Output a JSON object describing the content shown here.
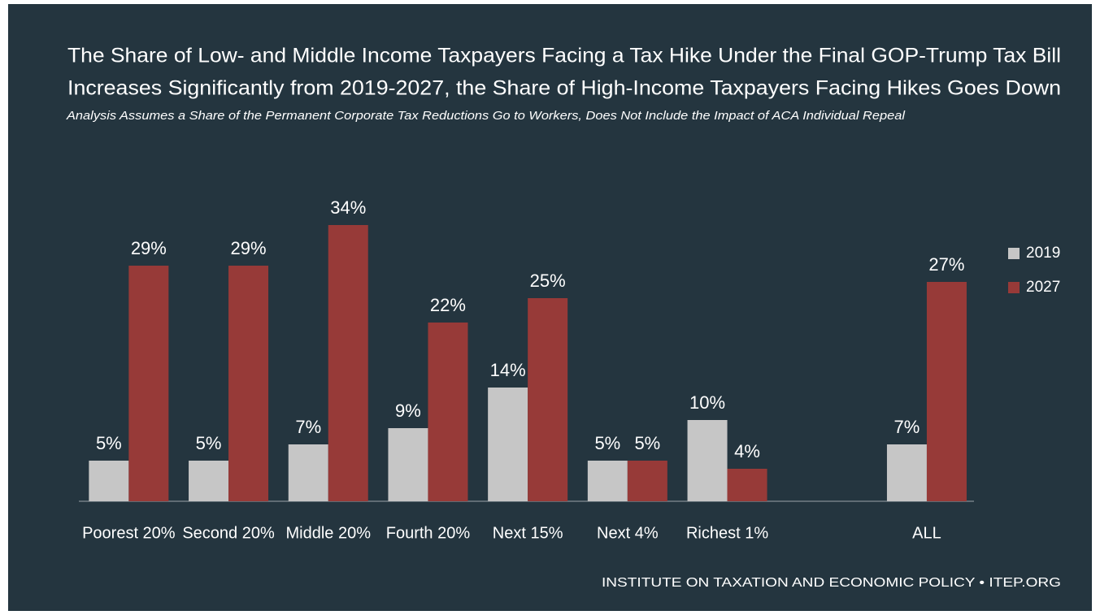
{
  "chart_data": {
    "type": "bar",
    "title": [
      "The Share of Low- and Middle Income Taxpayers Facing a Tax Hike Under the Final GOP-Trump Tax Bill",
      "Increases Significantly from 2019-2027, the Share of High-Income Taxpayers Facing Hikes Goes Down"
    ],
    "subtitle": "Analysis Assumes a Share of the Permanent Corporate Tax Reductions Go to Workers, Does Not Include the Impact of ACA Individual Repeal",
    "categories": [
      "Poorest 20%",
      "Second 20%",
      "Middle 20%",
      "Fourth 20%",
      "Next 15%",
      "Next 4%",
      "Richest 1%",
      null,
      "ALL"
    ],
    "series": [
      {
        "name": "2019",
        "color": "#c6c6c6",
        "values": [
          5,
          5,
          7,
          9,
          14,
          5,
          10,
          null,
          7
        ],
        "value_labels": [
          "5%",
          "5%",
          "7%",
          "9%",
          "14%",
          "5%",
          "10%",
          null,
          "7%"
        ]
      },
      {
        "name": "2027",
        "color": "#973a38",
        "values": [
          29,
          29,
          34,
          22,
          25,
          5,
          4,
          null,
          27
        ],
        "value_labels": [
          "29%",
          "29%",
          "34%",
          "22%",
          "25%",
          "5%",
          "4%",
          null,
          "27%"
        ]
      }
    ],
    "legend": "right",
    "source": "INSTITUTE ON TAXATION AND ECONOMIC POLICY • ITEP.ORG"
  }
}
